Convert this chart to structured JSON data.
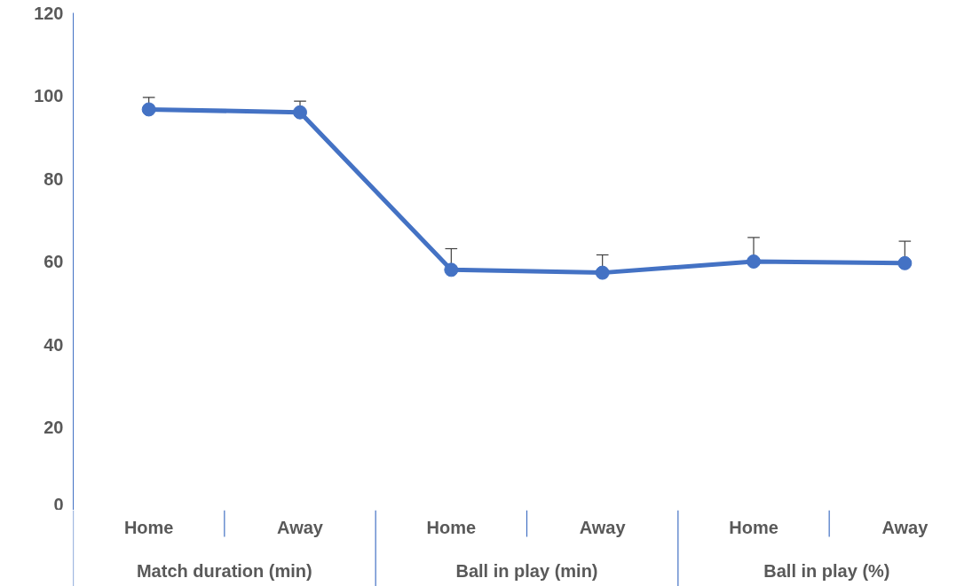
{
  "chart_data": {
    "type": "line",
    "categories": [
      "Home",
      "Away",
      "Home",
      "Away",
      "Home",
      "Away"
    ],
    "values": [
      96.7,
      96.0,
      58.0,
      57.3,
      60.0,
      59.6
    ],
    "errors": [
      [
        96.7,
        99.6
      ],
      [
        96.0,
        98.7
      ],
      [
        58.0,
        63.1
      ],
      [
        57.3,
        61.6
      ],
      [
        60.0,
        65.8
      ],
      [
        59.6,
        64.9
      ]
    ],
    "color": "#4472c4",
    "marker": "circle",
    "line_style": "solid",
    "grid": false,
    "ylim": [
      0,
      120
    ],
    "yticks": [
      0,
      20,
      40,
      60,
      80,
      100,
      120
    ],
    "annotations": [
      "Match duration (min)",
      "Ball in play (min)",
      "Ball in play  (%)"
    ]
  }
}
